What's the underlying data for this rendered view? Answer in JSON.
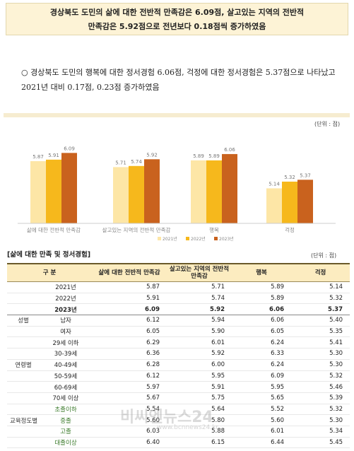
{
  "headline": {
    "line1": "경상북도 도민의 삶에 대한 전반적 만족감은 6.09점, 살고있는 지역의 전반적",
    "line2": "만족감은 5.92점으로 전년보다 0.18점씩 증가하였음"
  },
  "bullet": {
    "text": "○ 경상북도 도민의 행복에 대한 정서경험 6.06점, 걱정에 대한 정서경험은 5.37점으로 나타났고 2021년 대비 0.17점, 0.23점 증가하였음"
  },
  "chart_data": {
    "type": "bar",
    "unit_label": "(단위 : 점)",
    "categories": [
      "삶에 대한 전반적 만족감",
      "살고있는 지역의 전반적 만족감",
      "행복",
      "걱정"
    ],
    "series": [
      {
        "name": "2021년",
        "values": [
          5.87,
          5.71,
          5.89,
          5.14
        ],
        "color": "#fde6a6"
      },
      {
        "name": "2022년",
        "values": [
          5.91,
          5.74,
          5.89,
          5.32
        ],
        "color": "#f6b81c"
      },
      {
        "name": "2023년",
        "values": [
          6.09,
          5.92,
          6.06,
          5.37
        ],
        "color": "#c9621e"
      }
    ],
    "value_labels": [
      [
        "5.87",
        "5.91",
        "6.09"
      ],
      [
        "5.71",
        "5.74",
        "5.92"
      ],
      [
        "5.89",
        "5.89",
        "6.06"
      ],
      [
        "5.14",
        "5.32",
        "5.37"
      ]
    ],
    "ylim": [
      4.2,
      6.4
    ],
    "legend_position": "bottom",
    "grid": false
  },
  "table": {
    "title": "[삶에 대한 만족 및 정서경험]",
    "unit": "(단위 : 점)",
    "headers": [
      "구 분",
      "삶에 대한 전반적 만족감",
      "살고있는 지역의 전반적 만족감",
      "행복",
      "걱정"
    ],
    "rows": [
      {
        "group": "",
        "label": "2021년",
        "vals": [
          "5.87",
          "5.71",
          "5.89",
          "5.14"
        ],
        "bold": false
      },
      {
        "group": "",
        "label": "2022년",
        "vals": [
          "5.91",
          "5.74",
          "5.89",
          "5.32"
        ],
        "bold": false
      },
      {
        "group": "",
        "label": "2023년",
        "vals": [
          "6.09",
          "5.92",
          "6.06",
          "5.37"
        ],
        "bold": true
      },
      {
        "group": "성별",
        "label": "남자",
        "vals": [
          "6.12",
          "5.94",
          "6.06",
          "5.40"
        ],
        "bold": false
      },
      {
        "group": "",
        "label": "여자",
        "vals": [
          "6.05",
          "5.90",
          "6.05",
          "5.35"
        ],
        "bold": false
      },
      {
        "group": "",
        "label": "29세 이하",
        "vals": [
          "6.29",
          "6.01",
          "6.24",
          "5.41"
        ],
        "bold": false
      },
      {
        "group": "",
        "label": "30-39세",
        "vals": [
          "6.36",
          "5.92",
          "6.33",
          "5.30"
        ],
        "bold": false
      },
      {
        "group": "연령별",
        "label": "40-49세",
        "vals": [
          "6.28",
          "6.00",
          "6.24",
          "5.30"
        ],
        "bold": false
      },
      {
        "group": "",
        "label": "50-59세",
        "vals": [
          "6.12",
          "5.95",
          "6.09",
          "5.32"
        ],
        "bold": false
      },
      {
        "group": "",
        "label": "60-69세",
        "vals": [
          "5.97",
          "5.91",
          "5.95",
          "5.46"
        ],
        "bold": false
      },
      {
        "group": "",
        "label": "70세 이상",
        "vals": [
          "5.67",
          "5.75",
          "5.65",
          "5.39"
        ],
        "bold": false
      },
      {
        "group": "",
        "label": "초졸이하",
        "vals": [
          "5.54",
          "5.64",
          "5.52",
          "5.32"
        ],
        "bold": false,
        "edu": true
      },
      {
        "group": "교육정도별",
        "label": "중졸",
        "vals": [
          "5.60",
          "5.80",
          "5.60",
          "5.30"
        ],
        "bold": false,
        "edu": true
      },
      {
        "group": "",
        "label": "고졸",
        "vals": [
          "6.03",
          "5.88",
          "6.01",
          "5.34"
        ],
        "bold": false,
        "edu": true
      },
      {
        "group": "",
        "label": "대졸이상",
        "vals": [
          "6.40",
          "6.15",
          "6.44",
          "5.45"
        ],
        "bold": false,
        "edu": true
      }
    ]
  },
  "watermark": {
    "main": "비씨엔뉴스24",
    "sub": "www.bcnnews24.kr"
  }
}
